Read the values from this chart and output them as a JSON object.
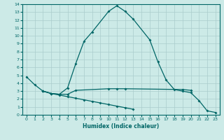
{
  "title": "",
  "xlabel": "Humidex (Indice chaleur)",
  "background_color": "#cceae7",
  "grid_color": "#aacccc",
  "line_color": "#006666",
  "xlim": [
    -0.5,
    23.5
  ],
  "ylim": [
    0,
    14
  ],
  "xticks": [
    0,
    1,
    2,
    3,
    4,
    5,
    6,
    7,
    8,
    9,
    10,
    11,
    12,
    13,
    14,
    15,
    16,
    17,
    18,
    19,
    20,
    21,
    22,
    23
  ],
  "yticks": [
    0,
    1,
    2,
    3,
    4,
    5,
    6,
    7,
    8,
    9,
    10,
    11,
    12,
    13,
    14
  ],
  "line1_x": [
    0,
    1,
    2,
    3,
    4,
    5,
    6,
    7,
    8,
    10,
    11,
    12,
    13,
    15,
    16,
    17,
    18,
    19,
    20,
    21,
    22,
    23
  ],
  "line1_y": [
    4.8,
    3.8,
    3.0,
    2.7,
    2.6,
    3.4,
    6.5,
    9.3,
    10.5,
    13.1,
    13.8,
    13.1,
    12.1,
    9.5,
    6.7,
    4.4,
    3.2,
    3.0,
    2.8,
    1.8,
    0.5,
    0.3
  ],
  "line2_x": [
    2,
    3,
    4,
    5,
    6,
    10,
    11,
    12,
    19,
    20
  ],
  "line2_y": [
    3.0,
    2.7,
    2.6,
    2.6,
    3.1,
    3.3,
    3.3,
    3.3,
    3.2,
    3.1
  ],
  "line3_x": [
    2,
    3,
    4,
    5,
    6,
    7,
    8,
    9,
    10,
    11,
    12,
    13
  ],
  "line3_y": [
    3.0,
    2.7,
    2.5,
    2.3,
    2.1,
    1.9,
    1.7,
    1.5,
    1.3,
    1.1,
    0.9,
    0.7
  ]
}
